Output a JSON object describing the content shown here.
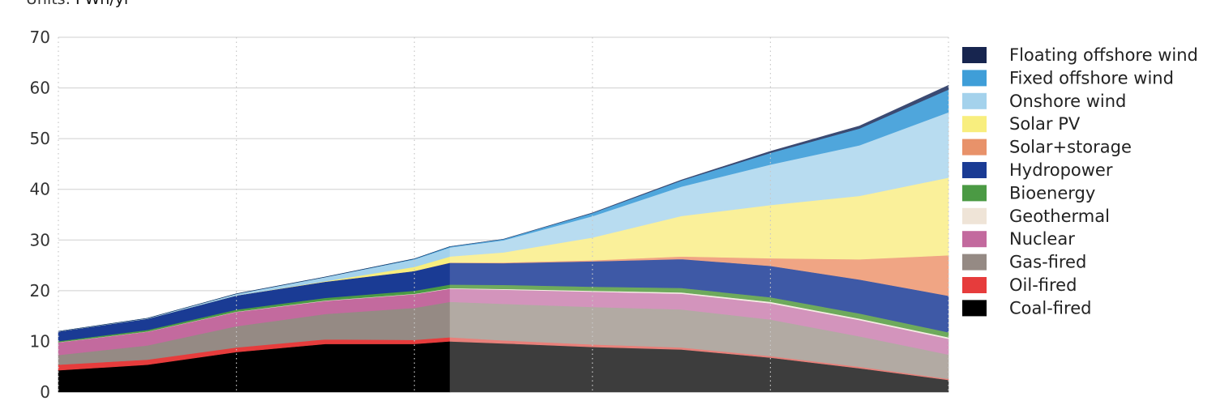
{
  "units": {
    "prefix": "Units:",
    "value": "PWh/yr"
  },
  "chart_data": {
    "type": "area",
    "stacked": true,
    "ylim": [
      0,
      70
    ],
    "yticks": [
      0,
      10,
      20,
      30,
      40,
      50,
      60,
      70
    ],
    "xlim": [
      2000,
      2050
    ],
    "grid": {
      "horizontal": true,
      "vertical": "dotted"
    },
    "x_gridlines": [
      2000,
      2010,
      2020,
      2030,
      2040,
      2050
    ],
    "forecast_start": 2022,
    "legend_position": "right",
    "x": [
      2000,
      2005,
      2010,
      2015,
      2020,
      2022,
      2025,
      2030,
      2035,
      2040,
      2045,
      2050
    ],
    "series": [
      {
        "name": "Coal-fired",
        "color": "#000000",
        "forecast_color": "#3d3d3d",
        "values": [
          4.3,
          5.4,
          7.9,
          9.5,
          9.5,
          10.0,
          9.6,
          8.9,
          8.4,
          6.8,
          4.7,
          2.4
        ]
      },
      {
        "name": "Oil-fired",
        "color": "#e63c3c",
        "forecast_color": "#e8807a",
        "values": [
          1.1,
          1.0,
          0.9,
          0.9,
          0.8,
          0.8,
          0.6,
          0.5,
          0.4,
          0.3,
          0.3,
          0.2
        ]
      },
      {
        "name": "Gas-fired",
        "color": "#958a84",
        "forecast_color": "#b2aaa3",
        "values": [
          1.9,
          2.8,
          4.2,
          5.0,
          6.3,
          7.0,
          7.2,
          7.4,
          7.5,
          7.2,
          6.0,
          4.8
        ]
      },
      {
        "name": "Nuclear",
        "color": "#c36a9e",
        "forecast_color": "#d394bc",
        "values": [
          2.5,
          2.7,
          2.8,
          2.6,
          2.7,
          2.6,
          2.8,
          3.0,
          3.1,
          3.2,
          3.2,
          3.1
        ]
      },
      {
        "name": "Geothermal",
        "color": "#efe4d7",
        "forecast_color": "#f5ede4",
        "values": [
          0.05,
          0.06,
          0.07,
          0.08,
          0.09,
          0.1,
          0.15,
          0.2,
          0.25,
          0.3,
          0.3,
          0.3
        ]
      },
      {
        "name": "Bioenergy",
        "color": "#4b9a44",
        "forecast_color": "#6eaa5c",
        "values": [
          0.2,
          0.3,
          0.4,
          0.5,
          0.6,
          0.7,
          0.8,
          0.8,
          0.9,
          0.9,
          1.0,
          1.0
        ]
      },
      {
        "name": "Hydropower",
        "color": "#1a3b94",
        "forecast_color": "#3e59a6",
        "values": [
          1.9,
          2.2,
          2.8,
          3.2,
          3.9,
          4.3,
          4.3,
          5.0,
          5.7,
          6.2,
          6.7,
          7.2
        ]
      },
      {
        "name": "Solar+storage",
        "color": "#e8926a",
        "forecast_color": "#f0a584",
        "values": [
          0,
          0,
          0,
          0,
          0,
          0.05,
          0.1,
          0.2,
          0.5,
          1.5,
          4.0,
          8.0
        ]
      },
      {
        "name": "Solar PV",
        "color": "#f8ee7e",
        "forecast_color": "#faf09a",
        "values": [
          0,
          0,
          0,
          0.1,
          0.8,
          1.2,
          2.0,
          4.5,
          8.0,
          10.5,
          12.5,
          15.3
        ]
      },
      {
        "name": "Onshore wind",
        "color": "#a4d2ec",
        "forecast_color": "#b8dcf0",
        "values": [
          0.03,
          0.1,
          0.3,
          0.8,
          1.5,
          1.8,
          2.4,
          4.2,
          5.8,
          8.0,
          10.0,
          12.9
        ]
      },
      {
        "name": "Fixed offshore wind",
        "color": "#3f9ed8",
        "forecast_color": "#4fa6dc",
        "values": [
          0,
          0,
          0.01,
          0.03,
          0.1,
          0.15,
          0.2,
          0.6,
          1.2,
          2.3,
          3.3,
          4.5
        ]
      },
      {
        "name": "Floating offshore wind",
        "color": "#17254f",
        "forecast_color": "#3b4a72",
        "values": [
          0,
          0,
          0,
          0,
          0,
          0,
          0.01,
          0.05,
          0.1,
          0.3,
          0.5,
          0.8
        ]
      }
    ],
    "legend_order": [
      "Floating offshore wind",
      "Fixed offshore wind",
      "Onshore wind",
      "Solar PV",
      "Solar+storage",
      "Hydropower",
      "Bioenergy",
      "Geothermal",
      "Nuclear",
      "Gas-fired",
      "Oil-fired",
      "Coal-fired"
    ]
  }
}
